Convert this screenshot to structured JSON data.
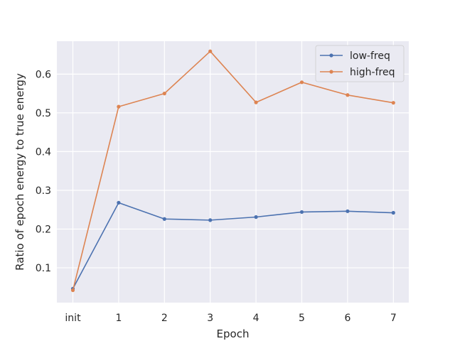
{
  "chart_data": {
    "type": "line",
    "title": "",
    "xlabel": "Epoch",
    "ylabel": "Ratio of epoch energy to true energy",
    "categories": [
      "init",
      "1",
      "2",
      "3",
      "4",
      "5",
      "6",
      "7"
    ],
    "yticks": [
      "0.1",
      "0.2",
      "0.3",
      "0.4",
      "0.5",
      "0.6"
    ],
    "ylim": [
      0.01,
      0.685
    ],
    "grid": true,
    "legend_position": "top-right",
    "series": [
      {
        "name": "low-freq",
        "color": "#4c72b0",
        "marker": "circle",
        "values": [
          0.046,
          0.268,
          0.226,
          0.223,
          0.231,
          0.244,
          0.246,
          0.242
        ]
      },
      {
        "name": "high-freq",
        "color": "#dd8452",
        "marker": "circle",
        "values": [
          0.042,
          0.516,
          0.55,
          0.659,
          0.527,
          0.579,
          0.546,
          0.526
        ]
      }
    ]
  }
}
